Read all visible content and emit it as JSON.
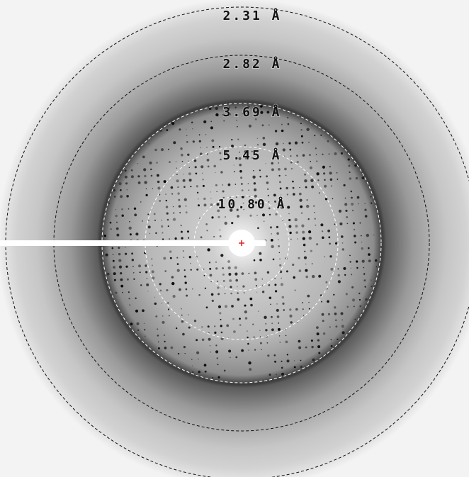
{
  "rings": [
    {
      "label": "2.31 Å"
    },
    {
      "label": "2.82 Å"
    },
    {
      "label": "3.69 Å"
    },
    {
      "label": "5.45 Å"
    },
    {
      "label": "10.80 Å"
    }
  ]
}
